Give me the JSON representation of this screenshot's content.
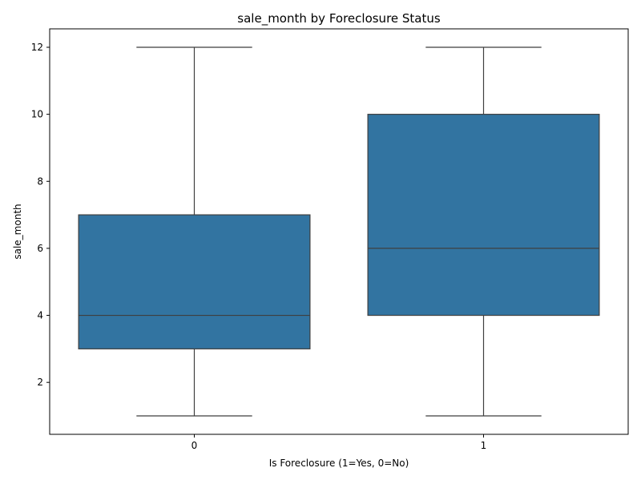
{
  "chart_data": {
    "type": "box",
    "title": "sale_month by Foreclosure Status",
    "xlabel": "Is Foreclosure (1=Yes, 0=No)",
    "ylabel": "sale_month",
    "categories": [
      "0",
      "1"
    ],
    "boxes": [
      {
        "category": "0",
        "whisker_low": 1,
        "q1": 3,
        "median": 4,
        "q3": 7,
        "whisker_high": 12
      },
      {
        "category": "1",
        "whisker_low": 1,
        "q1": 4,
        "median": 6,
        "q3": 10,
        "whisker_high": 12
      }
    ],
    "ylim": [
      0.45,
      12.55
    ],
    "yticks": [
      2,
      4,
      6,
      8,
      10,
      12
    ],
    "grid": false,
    "legend": "none",
    "colors": {
      "box_fill": "#3274a1",
      "line": "#3f3f3f",
      "axis": "#000000"
    }
  }
}
